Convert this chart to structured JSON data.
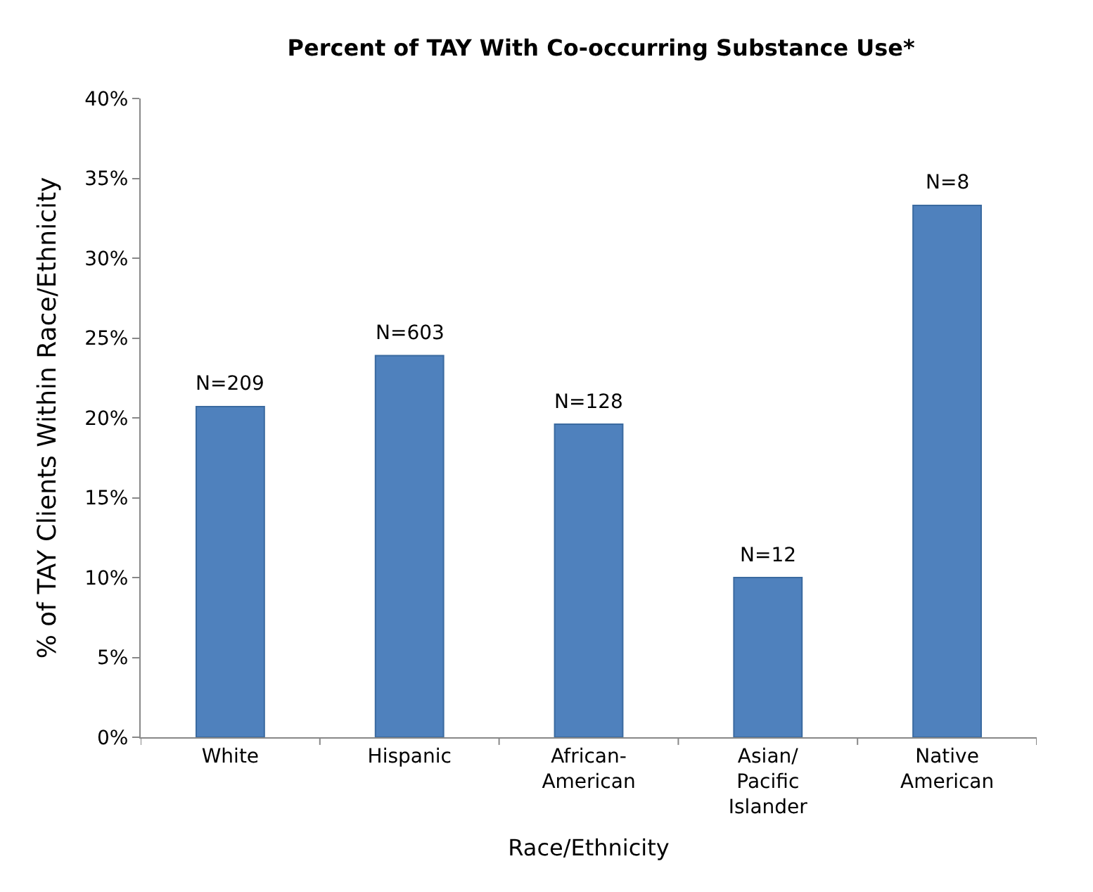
{
  "chart_data": {
    "type": "bar",
    "title": "Percent of TAY With Co-occurring Substance Use*",
    "xlabel": "Race/Ethnicity",
    "ylabel": "% of TAY Clients Within Race/Ethnicity",
    "categories": [
      "White",
      "Hispanic",
      "African-\nAmerican",
      "Asian/\nPacific\nIslander",
      "Native\nAmerican"
    ],
    "values": [
      20.7,
      23.9,
      19.6,
      10.0,
      33.3
    ],
    "annotations": [
      {
        "text": "N=209",
        "x": "White",
        "y": 20.7
      },
      {
        "text": "N=603",
        "x": "Hispanic",
        "y": 23.9
      },
      {
        "text": "N=128",
        "x": "African-\nAmerican",
        "y": 19.6
      },
      {
        "text": "N=12",
        "x": "Asian/\nPacific\nIslander",
        "y": 10.0
      },
      {
        "text": "N=8",
        "x": "Native\nAmerican",
        "y": 33.3
      }
    ],
    "color": "#4f81bd",
    "ylim": [
      0,
      40
    ],
    "yticks": [
      {
        "value": 0,
        "label": "0%"
      },
      {
        "value": 5,
        "label": "5%"
      },
      {
        "value": 10,
        "label": "10%"
      },
      {
        "value": 15,
        "label": "15%"
      },
      {
        "value": 20,
        "label": "20%"
      },
      {
        "value": 25,
        "label": "25%"
      },
      {
        "value": 30,
        "label": "30%"
      },
      {
        "value": 35,
        "label": "35%"
      },
      {
        "value": 40,
        "label": "40%"
      }
    ],
    "legend": false
  }
}
